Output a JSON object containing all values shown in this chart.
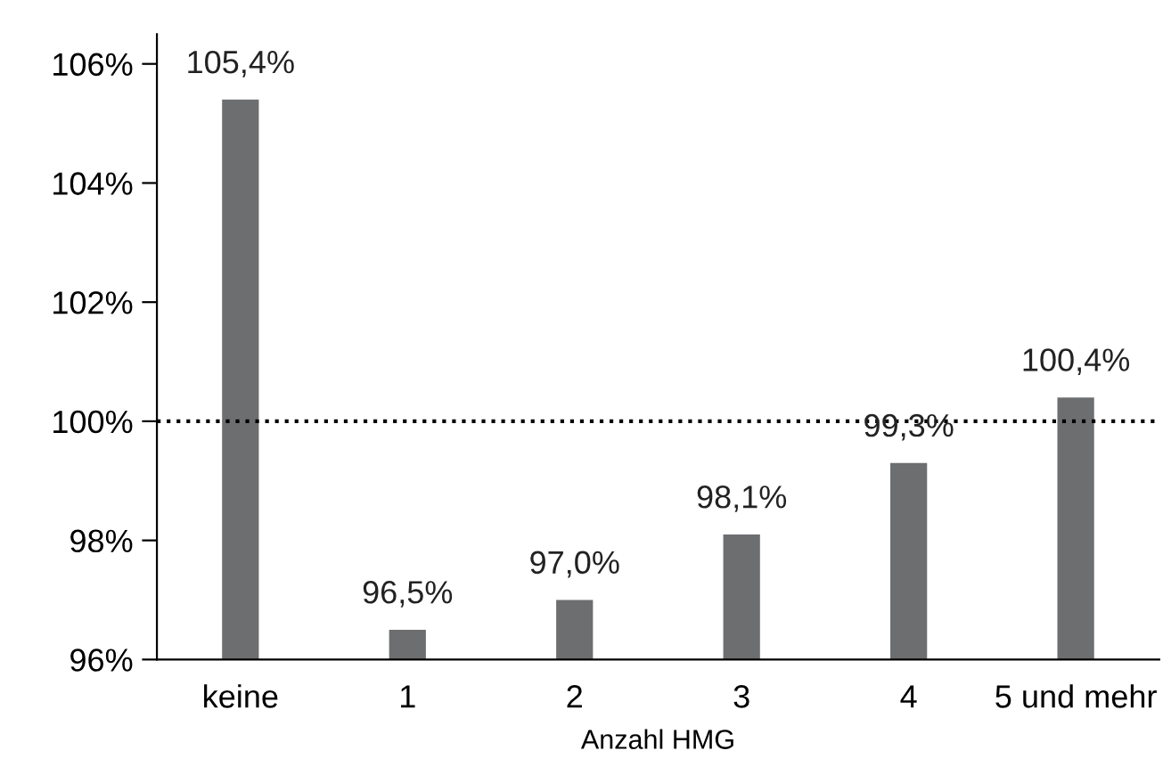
{
  "chart_data": {
    "type": "bar",
    "xlabel": "Anzahl HMG",
    "categories": [
      "keine",
      "1",
      "2",
      "3",
      "4",
      "5 und mehr"
    ],
    "values": [
      105.4,
      96.5,
      97.0,
      98.1,
      99.3,
      100.4
    ],
    "value_labels": [
      "105,4%",
      "96,5%",
      "97,0%",
      "98,1%",
      "99,3%",
      "100,4%"
    ],
    "color": "#6d6e70",
    "ylim": [
      96,
      106.5
    ],
    "yticks": [
      {
        "value": 96,
        "label": "96%"
      },
      {
        "value": 98,
        "label": "98%"
      },
      {
        "value": 100,
        "label": "100%"
      },
      {
        "value": 102,
        "label": "102%"
      },
      {
        "value": 104,
        "label": "104%"
      },
      {
        "value": 106,
        "label": "106%"
      }
    ],
    "ref_lines": [
      {
        "axis": "y",
        "value": 100,
        "color": "#000000",
        "line_style": "dotted"
      }
    ],
    "grid": false,
    "legend": false
  }
}
